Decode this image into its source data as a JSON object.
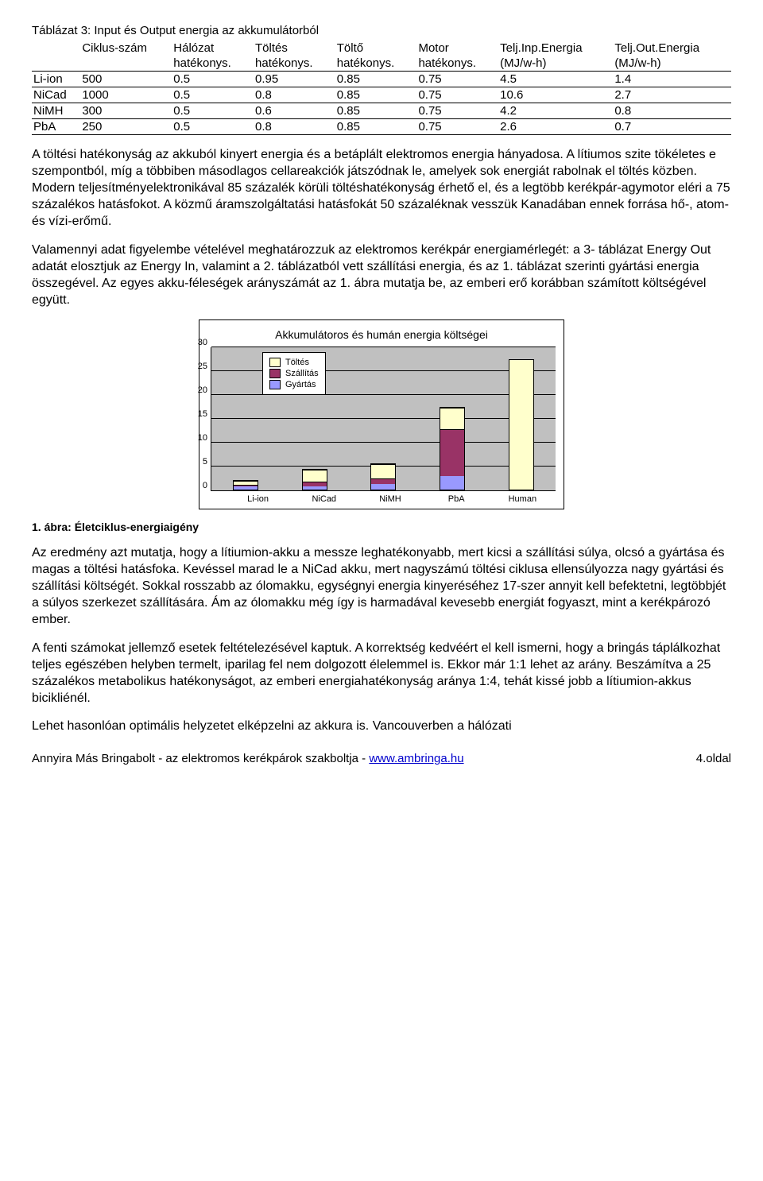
{
  "table": {
    "title": "Táblázat 3: Input és Output energia az akkumulátorból",
    "headers_top": [
      "",
      "Ciklus-szám",
      "Hálózat",
      "Töltés",
      "Töltő",
      "Motor",
      "Telj.Inp.Energia",
      "Telj.Out.Energia"
    ],
    "headers_bot": [
      "",
      "",
      "hatékonys.",
      "hatékonys.",
      "hatékonys.",
      "hatékonys.",
      "(MJ/w-h)",
      "(MJ/w-h)"
    ],
    "rows": [
      [
        "Li-ion",
        "500",
        "0.5",
        "0.95",
        "0.85",
        "0.75",
        "4.5",
        "1.4"
      ],
      [
        "NiCad",
        "1000",
        "0.5",
        "0.8",
        "0.85",
        "0.75",
        "10.6",
        "2.7"
      ],
      [
        "NiMH",
        "300",
        "0.5",
        "0.6",
        "0.85",
        "0.75",
        "4.2",
        "0.8"
      ],
      [
        "PbA",
        "250",
        "0.5",
        "0.8",
        "0.85",
        "0.75",
        "2.6",
        "0.7"
      ]
    ]
  },
  "para1": "A töltési hatékonyság az akkuból kinyert energia és a betáplált elektromos energia hányadosa. A lítiumos szite tökéletes e szempontból, míg a többiben másodlagos cellareakciók játszódnak le, amelyek sok energiát rabolnak el töltés közben. Modern teljesítményelektronikával 85 százalék körüli töltéshatékonyság érhető el, és a legtöbb kerékpár-agymotor eléri a 75 százalékos hatásfokot. A közmű áramszolgáltatási hatásfokát 50 százaléknak vesszük Kanadában ennek forrása hő-, atom- és vízi-erőmű.",
  "para2": "Valamennyi adat figyelembe vételével meghatározzuk az elektromos kerékpár energiamérlegét: a 3- táblázat Energy Out adatát elosztjuk az Energy In, valamint a 2. táblázatból vett szállítási energia, és az 1. táblázat szerinti gyártási energia összegével. Az egyes akku-féleségek arányszámát az 1. ábra mutatja be, az emberi erő korábban számított költségével együtt.",
  "chart": {
    "title": "Akkumulátoros és humán energia költségei",
    "legend": [
      {
        "label": "Töltés",
        "color": "#ffffcc"
      },
      {
        "label": "Szállítás",
        "color": "#993366"
      },
      {
        "label": "Gyártás",
        "color": "#9999ff"
      }
    ],
    "ymax": 30,
    "ytick_step": 5,
    "yticks": [
      0,
      5,
      10,
      15,
      20,
      25,
      30
    ],
    "categories": [
      "Li-ion",
      "NiCad",
      "NiMH",
      "PbA",
      "Human"
    ],
    "series_order": [
      "gyartas",
      "szallitas",
      "toltes"
    ],
    "colors": {
      "gyartas": "#9999ff",
      "szallitas": "#993366",
      "toltes": "#ffffcc"
    },
    "data": [
      {
        "gyartas": 0.6,
        "szallitas": 0.4,
        "toltes": 0.9
      },
      {
        "gyartas": 0.7,
        "szallitas": 1.0,
        "toltes": 2.4
      },
      {
        "gyartas": 1.2,
        "szallitas": 1.2,
        "toltes": 3.0
      },
      {
        "gyartas": 2.8,
        "szallitas": 9.8,
        "toltes": 4.6
      },
      {
        "gyartas": 0.0,
        "szallitas": 0.0,
        "toltes": 27.2
      }
    ],
    "background": "#c0c0c0",
    "grid_color": "#000000"
  },
  "figure_caption": "1. ábra: Életciklus-energiaigény",
  "para3": "Az eredmény azt mutatja, hogy a lítiumion-akku a messze leghatékonyabb, mert kicsi a szállítási súlya, olcsó a gyártása és magas a töltési hatásfoka. Kevéssel marad le a NiCad akku, mert nagyszámú töltési ciklusa ellensúlyozza nagy gyártási és szállítási költségét. Sokkal rosszabb az ólomakku, egységnyi energia kinyeréséhez 17-szer annyit kell befektetni, legtöbbjét a súlyos szerkezet szállítására. Ám az ólomakku még így is harmadával kevesebb energiát fogyaszt, mint a kerékpározó ember.",
  "para4": "A fenti számokat jellemző esetek feltételezésével kaptuk. A korrektség kedvéért el kell ismerni, hogy a bringás táplálkozhat teljes egészében helyben termelt, iparilag fel nem dolgozott élelemmel is. Ekkor már 1:1 lehet az arány. Beszámítva a 25 százalékos metabolikus hatékonyságot, az emberi energiahatékonyság aránya 1:4, tehát kissé jobb a lítiumion-akkus bicikliénél.",
  "para5": "Lehet hasonlóan optimális helyzetet elképzelni az akkura is. Vancouverben a hálózati",
  "footer": {
    "left": "Annyira Más Bringabolt  - az elektromos kerékpárok szakboltja  -  ",
    "link_text": "www.ambringa.hu",
    "right": "4.oldal"
  }
}
